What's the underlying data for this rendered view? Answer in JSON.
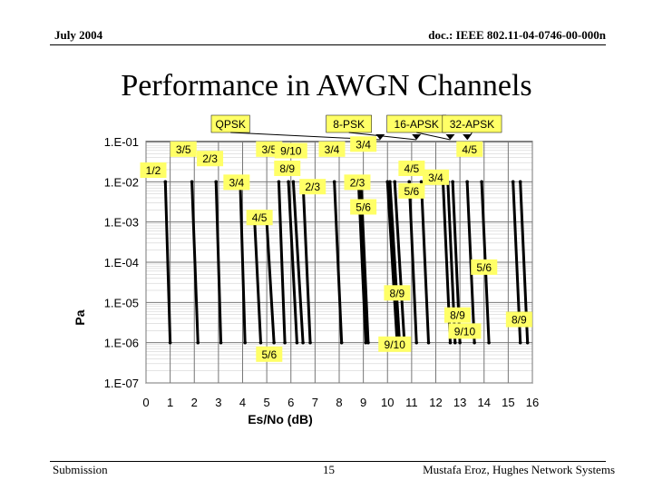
{
  "header": {
    "left": "July 2004",
    "right": "doc.: IEEE 802.11-04-0746-00-000n"
  },
  "title": "Performance in AWGN Channels",
  "footer": {
    "left": "Submission",
    "page": "15",
    "right": "Mustafa Eroz, Hughes Network Systems"
  },
  "chart_data": {
    "type": "line",
    "title": "",
    "xlabel": "Es/No (dB)",
    "ylabel": "Pa",
    "xlim": [
      0,
      16
    ],
    "ylim": [
      1e-07,
      0.1
    ],
    "yscale": "log",
    "x_ticks": [
      "0",
      "1",
      "2",
      "3",
      "4",
      "5",
      "6",
      "7",
      "8",
      "9",
      "10",
      "11",
      "12",
      "13",
      "14",
      "15",
      "16"
    ],
    "y_ticks": [
      "1.E-01",
      "1.E-02",
      "1.E-03",
      "1.E-04",
      "1.E-05",
      "1.E-06",
      "1.E-07"
    ],
    "grid": true,
    "legend": [
      {
        "name": "QPSK",
        "x": 3.5
      },
      {
        "name": "8-PSK",
        "x": 8.4
      },
      {
        "name": "16-APSK",
        "x": 11.2
      },
      {
        "name": "32-APSK",
        "x": 13.5
      }
    ],
    "legend_arrow_targets": [
      9.7,
      11.2,
      12.6,
      13.3
    ],
    "curves": [
      {
        "rate": "1/2",
        "group": "QPSK",
        "x": [
          0.8,
          1.0
        ],
        "y": [
          0.01,
          1e-06
        ]
      },
      {
        "rate": "3/5",
        "group": "QPSK",
        "x": [
          1.9,
          2.15
        ],
        "y": [
          0.01,
          1e-06
        ]
      },
      {
        "rate": "2/3",
        "group": "QPSK",
        "x": [
          2.9,
          3.1
        ],
        "y": [
          0.01,
          1e-06
        ]
      },
      {
        "rate": "3/4",
        "group": "QPSK",
        "x": [
          3.9,
          4.1
        ],
        "y": [
          0.01,
          1e-06
        ]
      },
      {
        "rate": "4/5",
        "group": "QPSK",
        "x": [
          4.5,
          4.75
        ],
        "y": [
          0.001,
          1e-06
        ]
      },
      {
        "rate": "5/6",
        "group": "QPSK",
        "x": [
          5.0,
          5.3
        ],
        "y": [
          0.001,
          1e-06
        ]
      },
      {
        "rate": "8/9",
        "group": "QPSK",
        "x": [
          5.9,
          6.25
        ],
        "y": [
          0.01,
          1e-06
        ]
      },
      {
        "rate": "9/10",
        "group": "QPSK",
        "x": [
          6.1,
          6.5
        ],
        "y": [
          0.01,
          1e-06
        ]
      },
      {
        "rate": "3/5",
        "group": "8-PSK",
        "x": [
          5.5,
          5.75
        ],
        "y": [
          0.01,
          1e-06
        ]
      },
      {
        "rate": "2/3",
        "group": "8-PSK",
        "x": [
          6.5,
          6.8
        ],
        "y": [
          0.01,
          1e-06
        ]
      },
      {
        "rate": "3/4",
        "group": "8-PSK",
        "x": [
          7.8,
          8.1
        ],
        "y": [
          0.01,
          1e-06
        ]
      },
      {
        "rate": "5/6",
        "group": "8-PSK",
        "x": [
          8.9,
          9.2
        ],
        "y": [
          0.01,
          1e-06
        ]
      },
      {
        "rate": "8/9",
        "group": "8-PSK",
        "x": [
          10.0,
          10.4
        ],
        "y": [
          0.01,
          1e-06
        ]
      },
      {
        "rate": "9/10",
        "group": "8-PSK",
        "x": [
          10.3,
          10.7
        ],
        "y": [
          0.01,
          1e-06
        ]
      },
      {
        "rate": "2/3",
        "group": "16-APSK",
        "x": [
          8.8,
          9.1
        ],
        "y": [
          0.01,
          1e-06
        ]
      },
      {
        "rate": "3/4",
        "group": "16-APSK",
        "x": [
          10.1,
          10.5
        ],
        "y": [
          0.01,
          1e-06
        ]
      },
      {
        "rate": "4/5",
        "group": "16-APSK",
        "x": [
          10.9,
          11.2
        ],
        "y": [
          0.01,
          1e-06
        ]
      },
      {
        "rate": "5/6",
        "group": "16-APSK",
        "x": [
          11.4,
          11.7
        ],
        "y": [
          0.01,
          1e-06
        ]
      },
      {
        "rate": "8/9",
        "group": "16-APSK",
        "x": [
          12.3,
          12.6
        ],
        "y": [
          0.01,
          1e-06
        ]
      },
      {
        "rate": "9/10",
        "group": "16-APSK",
        "x": [
          12.7,
          13.0
        ],
        "y": [
          0.01,
          1e-06
        ]
      },
      {
        "rate": "3/4",
        "group": "32-APSK",
        "x": [
          12.5,
          12.8
        ],
        "y": [
          0.01,
          1e-06
        ]
      },
      {
        "rate": "4/5",
        "group": "32-APSK",
        "x": [
          13.3,
          13.6
        ],
        "y": [
          0.01,
          1e-06
        ]
      },
      {
        "rate": "5/6",
        "group": "32-APSK",
        "x": [
          13.9,
          14.2
        ],
        "y": [
          0.01,
          1e-06
        ]
      },
      {
        "rate": "8/9",
        "group": "32-APSK",
        "x": [
          15.2,
          15.5
        ],
        "y": [
          0.01,
          1e-06
        ]
      },
      {
        "rate": "9/10",
        "group": "32-APSK",
        "x": [
          15.5,
          15.8
        ],
        "y": [
          0.01,
          1e-06
        ]
      }
    ],
    "rate_labels": [
      {
        "text": "1/2",
        "x": 0.3,
        "y": 0.018
      },
      {
        "text": "3/5",
        "x": 1.55,
        "y": 0.06
      },
      {
        "text": "2/3",
        "x": 2.65,
        "y": 0.035
      },
      {
        "text": "3/4",
        "x": 3.75,
        "y": 0.009
      },
      {
        "text": "4/5",
        "x": 4.7,
        "y": 0.0012
      },
      {
        "text": "3/5",
        "x": 5.1,
        "y": 0.06
      },
      {
        "text": "9/10",
        "x": 6.0,
        "y": 0.055
      },
      {
        "text": "8/9",
        "x": 5.85,
        "y": 0.02
      },
      {
        "text": "2/3",
        "x": 6.9,
        "y": 0.007
      },
      {
        "text": "3/4",
        "x": 7.7,
        "y": 0.06
      },
      {
        "text": "3/4",
        "x": 9.0,
        "y": 0.08
      },
      {
        "text": "2/3",
        "x": 8.75,
        "y": 0.009
      },
      {
        "text": "5/6",
        "x": 9.0,
        "y": 0.0022
      },
      {
        "text": "4/5",
        "x": 11.0,
        "y": 0.02
      },
      {
        "text": "3/4",
        "x": 12.0,
        "y": 0.012
      },
      {
        "text": "4/5",
        "x": 13.4,
        "y": 0.06
      },
      {
        "text": "5/6",
        "x": 11.0,
        "y": 0.0055
      },
      {
        "text": "5/6",
        "x": 14.0,
        "y": 7e-05
      },
      {
        "text": "8/9",
        "x": 10.4,
        "y": 1.6e-05
      },
      {
        "text": "8/9",
        "x": 12.9,
        "y": 4.5e-06
      },
      {
        "text": "9/10",
        "x": 13.2,
        "y": 1.8e-06
      },
      {
        "text": "8/9",
        "x": 15.45,
        "y": 3.5e-06
      },
      {
        "text": "9/10",
        "x": 10.3,
        "y": 8.5e-07
      },
      {
        "text": "5/6",
        "x": 5.1,
        "y": 4.8e-07
      }
    ]
  }
}
